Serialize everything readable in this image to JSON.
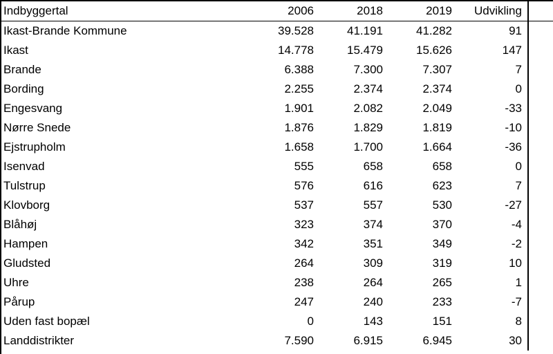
{
  "table": {
    "header": {
      "name": "Indbyggertal",
      "y2006": "2006",
      "y2018": "2018",
      "y2019": "2019",
      "dev": "Udvikling"
    },
    "rows": [
      {
        "name": "Ikast-Brande Kommune",
        "y2006": "39.528",
        "y2018": "41.191",
        "y2019": "41.282",
        "dev": "91"
      },
      {
        "name": "Ikast",
        "y2006": "14.778",
        "y2018": "15.479",
        "y2019": "15.626",
        "dev": "147"
      },
      {
        "name": "Brande",
        "y2006": "6.388",
        "y2018": "7.300",
        "y2019": "7.307",
        "dev": "7"
      },
      {
        "name": "Bording",
        "y2006": "2.255",
        "y2018": "2.374",
        "y2019": "2.374",
        "dev": "0"
      },
      {
        "name": "Engesvang",
        "y2006": "1.901",
        "y2018": "2.082",
        "y2019": "2.049",
        "dev": "-33"
      },
      {
        "name": "Nørre Snede",
        "y2006": "1.876",
        "y2018": "1.829",
        "y2019": "1.819",
        "dev": "-10"
      },
      {
        "name": "Ejstrupholm",
        "y2006": "1.658",
        "y2018": "1.700",
        "y2019": "1.664",
        "dev": "-36"
      },
      {
        "name": "Isenvad",
        "y2006": "555",
        "y2018": "658",
        "y2019": "658",
        "dev": "0"
      },
      {
        "name": "Tulstrup",
        "y2006": "576",
        "y2018": "616",
        "y2019": "623",
        "dev": "7"
      },
      {
        "name": "Klovborg",
        "y2006": "537",
        "y2018": "557",
        "y2019": "530",
        "dev": "-27"
      },
      {
        "name": "Blåhøj",
        "y2006": "323",
        "y2018": "374",
        "y2019": "370",
        "dev": "-4"
      },
      {
        "name": "Hampen",
        "y2006": "342",
        "y2018": "351",
        "y2019": "349",
        "dev": "-2"
      },
      {
        "name": "Gludsted",
        "y2006": "264",
        "y2018": "309",
        "y2019": "319",
        "dev": "10"
      },
      {
        "name": "Uhre",
        "y2006": "238",
        "y2018": "264",
        "y2019": "265",
        "dev": "1"
      },
      {
        "name": "Pårup",
        "y2006": "247",
        "y2018": "240",
        "y2019": "233",
        "dev": "-7"
      },
      {
        "name": "Uden fast bopæl",
        "y2006": "0",
        "y2018": "143",
        "y2019": "151",
        "dev": "8"
      },
      {
        "name": "Landdistrikter",
        "y2006": "7.590",
        "y2018": "6.915",
        "y2019": "6.945",
        "dev": "30"
      }
    ]
  }
}
